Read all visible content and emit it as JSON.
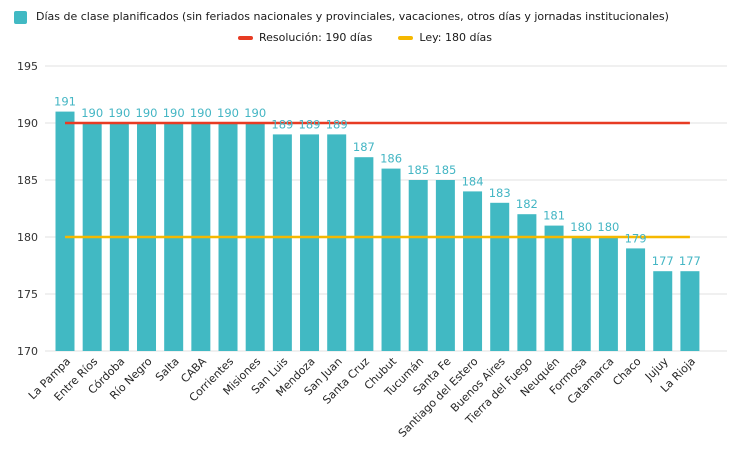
{
  "legend": {
    "bars_label": "Días de clase planificados (sin feriados nacionales y provinciales, vacaciones, otros días y jornadas institucionales)",
    "resolution_label": "Resolución: 190 días",
    "law_label": "Ley: 180 días"
  },
  "colors": {
    "bar": "#41b9c3",
    "value_label": "#44b6c4",
    "resolution_line": "#e73b23",
    "law_line": "#f5b800",
    "grid": "#e2e2e2",
    "axis_text": "#333333",
    "category_text": "#262626",
    "legend_text": "#1a1a1a"
  },
  "chart_data": {
    "type": "bar",
    "title": "",
    "xlabel": "",
    "ylabel": "",
    "categories": [
      "La Pampa",
      "Entre Ríos",
      "Córdoba",
      "Río Negro",
      "Salta",
      "CABA",
      "Corrientes",
      "Misiones",
      "San Luis",
      "Mendoza",
      "San Juan",
      "Santa Cruz",
      "Chubut",
      "Tucumán",
      "Santa Fe",
      "Santiago del Estero",
      "Buenos Aires",
      "Tierra del Fuego",
      "Neuquén",
      "Formosa",
      "Catamarca",
      "Chaco",
      "Jujuy",
      "La Rioja"
    ],
    "values": [
      191,
      190,
      190,
      190,
      190,
      190,
      190,
      190,
      189,
      189,
      189,
      187,
      186,
      185,
      185,
      184,
      183,
      182,
      181,
      180,
      180,
      179,
      177,
      177
    ],
    "series_label": "Días de clase planificados (sin feriados nacionales y provinciales, vacaciones, otros días y jornadas institucionales)",
    "ylim": [
      170,
      196
    ],
    "yticks": [
      170,
      175,
      180,
      185,
      190,
      195
    ],
    "grid": true,
    "legend_position": "top",
    "value_labels": true,
    "reference_lines": [
      {
        "name": "resolution",
        "label": "Resolución: 190 días",
        "value": 190,
        "color": "#e73b23"
      },
      {
        "name": "law",
        "label": "Ley: 180 días",
        "value": 180,
        "color": "#f5b800"
      }
    ]
  }
}
